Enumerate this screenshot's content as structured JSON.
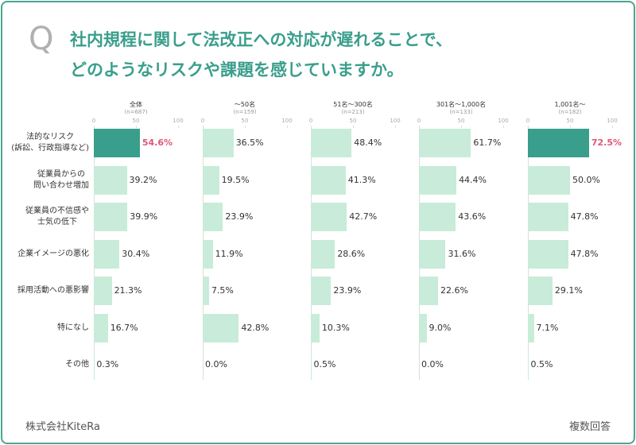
{
  "header": {
    "mark": "Q",
    "title_lines": [
      "社内規程に関して法改正への対応が遅れることで、",
      "どのようなリスクや課題を感じていますか。"
    ]
  },
  "footer": {
    "company": "株式会社KiteRa",
    "note": "複数回答"
  },
  "chart_data": [
    {
      "type": "bar",
      "title": "全体",
      "subtitle": "(n=687)",
      "categories": [
        "法的なリスク\n(訴訟、行政指導など)",
        "従業員からの\n問い合わせ増加",
        "従業員の不信感や\n士気の低下",
        "企業イメージの悪化",
        "採用活動への悪影響",
        "特になし",
        "その他"
      ],
      "values": [
        54.6,
        39.2,
        39.9,
        30.4,
        21.3,
        16.7,
        0.3
      ],
      "value_labels": [
        "54.6%",
        "39.2%",
        "39.9%",
        "30.4%",
        "21.3%",
        "16.7%",
        "0.3%"
      ],
      "color": "#c8ecd9",
      "highlight": 0,
      "highlight_color": "#3a9e8c",
      "highlight_label_color": "#e0557a",
      "xlim": [
        0,
        100
      ],
      "xticks": [
        0,
        50,
        100
      ]
    },
    {
      "type": "bar",
      "title": "～50名",
      "subtitle": "(n=159)",
      "values": [
        36.5,
        19.5,
        23.9,
        11.9,
        7.5,
        42.8,
        0.0
      ],
      "value_labels": [
        "36.5%",
        "19.5%",
        "23.9%",
        "11.9%",
        "7.5%",
        "42.8%",
        "0.0%"
      ],
      "color": "#c8ecd9",
      "xlim": [
        0,
        100
      ],
      "xticks": [
        0,
        50,
        100
      ]
    },
    {
      "type": "bar",
      "title": "51名～300名",
      "subtitle": "(n=213)",
      "values": [
        48.4,
        41.3,
        42.7,
        28.6,
        23.9,
        10.3,
        0.5
      ],
      "value_labels": [
        "48.4%",
        "41.3%",
        "42.7%",
        "28.6%",
        "23.9%",
        "10.3%",
        "0.5%"
      ],
      "color": "#c8ecd9",
      "xlim": [
        0,
        100
      ],
      "xticks": [
        0,
        50,
        100
      ]
    },
    {
      "type": "bar",
      "title": "301名～1,000名",
      "subtitle": "(n=133)",
      "values": [
        61.7,
        44.4,
        43.6,
        31.6,
        22.6,
        9.0,
        0.0
      ],
      "value_labels": [
        "61.7%",
        "44.4%",
        "43.6%",
        "31.6%",
        "22.6%",
        "9.0%",
        "0.0%"
      ],
      "color": "#c8ecd9",
      "xlim": [
        0,
        100
      ],
      "xticks": [
        0,
        50,
        100
      ]
    },
    {
      "type": "bar",
      "title": "1,001名～",
      "subtitle": "(n=182)",
      "values": [
        72.5,
        50.0,
        47.8,
        47.8,
        29.1,
        7.1,
        0.5
      ],
      "value_labels": [
        "72.5%",
        "50.0%",
        "47.8%",
        "47.8%",
        "29.1%",
        "7.1%",
        "0.5%"
      ],
      "color": "#c8ecd9",
      "highlight": 0,
      "highlight_color": "#3a9e8c",
      "highlight_label_color": "#e0557a",
      "xlim": [
        0,
        100
      ],
      "xticks": [
        0,
        50,
        100
      ]
    }
  ]
}
